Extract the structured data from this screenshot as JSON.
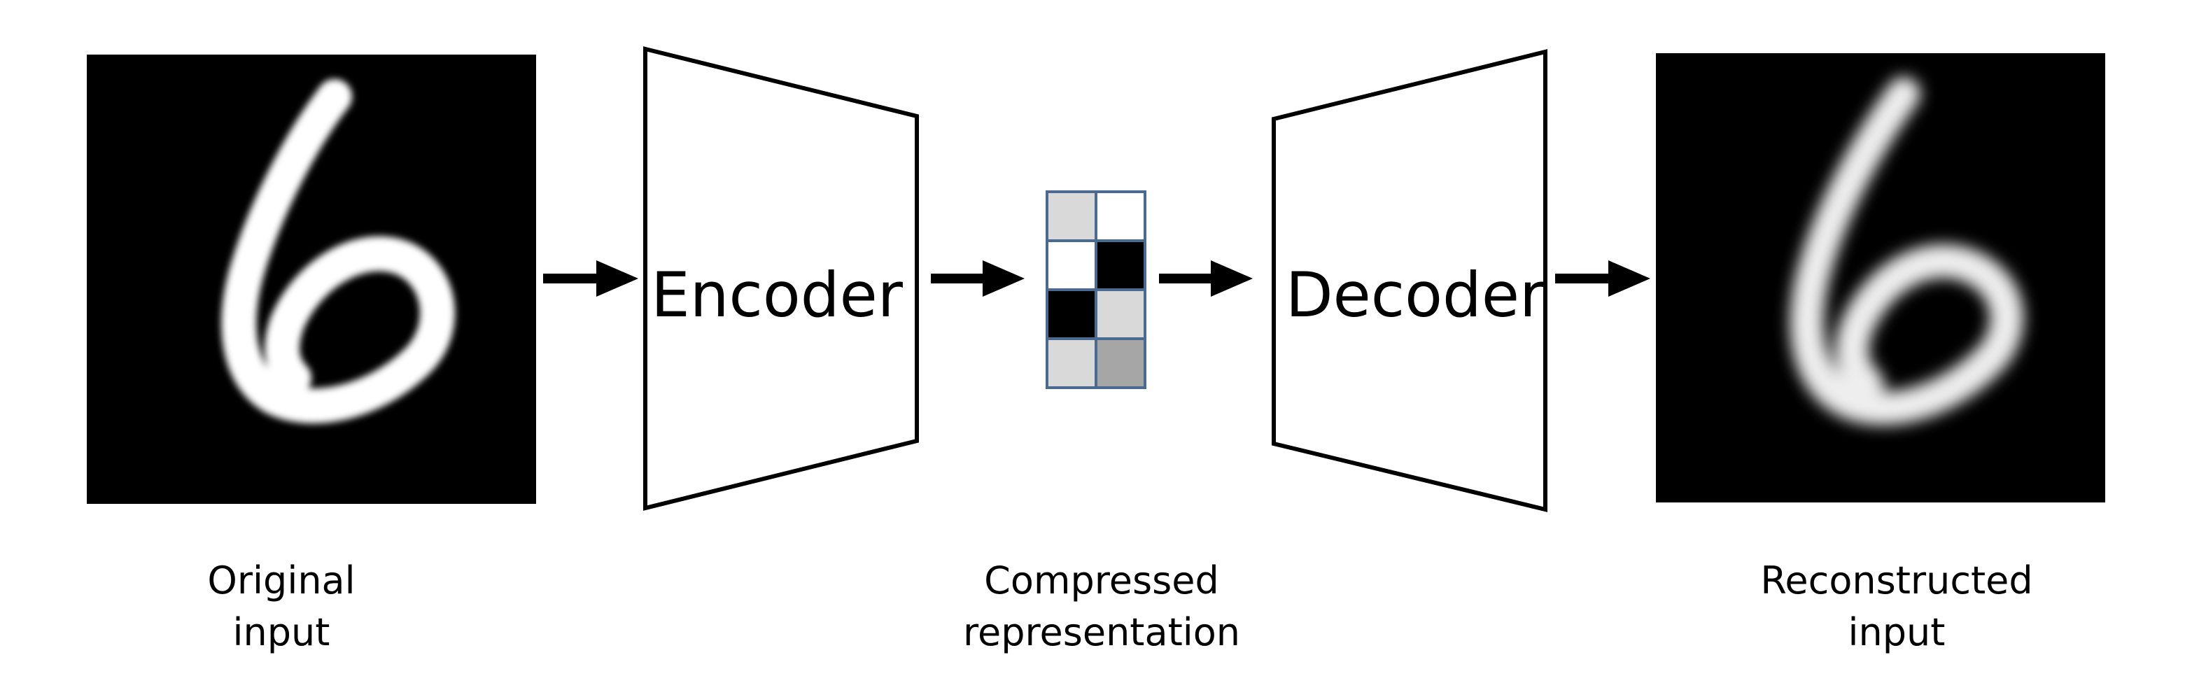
{
  "encoder": {
    "label": "Encoder"
  },
  "decoder": {
    "label": "Decoder"
  },
  "original": {
    "caption_line1": "Original",
    "caption_line2": "input"
  },
  "compressed": {
    "caption_line1": "Compressed",
    "caption_line2": "representation"
  },
  "reconstructed": {
    "caption_line1": "Reconstructed",
    "caption_line2": "input"
  },
  "latent_grid": {
    "rows": 4,
    "cols": 2,
    "cell_colors": [
      [
        "#d9d9d9",
        "#ffffff"
      ],
      [
        "#ffffff",
        "#000000"
      ],
      [
        "#000000",
        "#d9d9d9"
      ],
      [
        "#d9d9d9",
        "#a6a6a6"
      ]
    ],
    "border_color": "#4a6b8f"
  },
  "colors": {
    "image_background": "#000000",
    "digit_stroke": "#ffffff",
    "outline": "#000000"
  },
  "digit": "6"
}
